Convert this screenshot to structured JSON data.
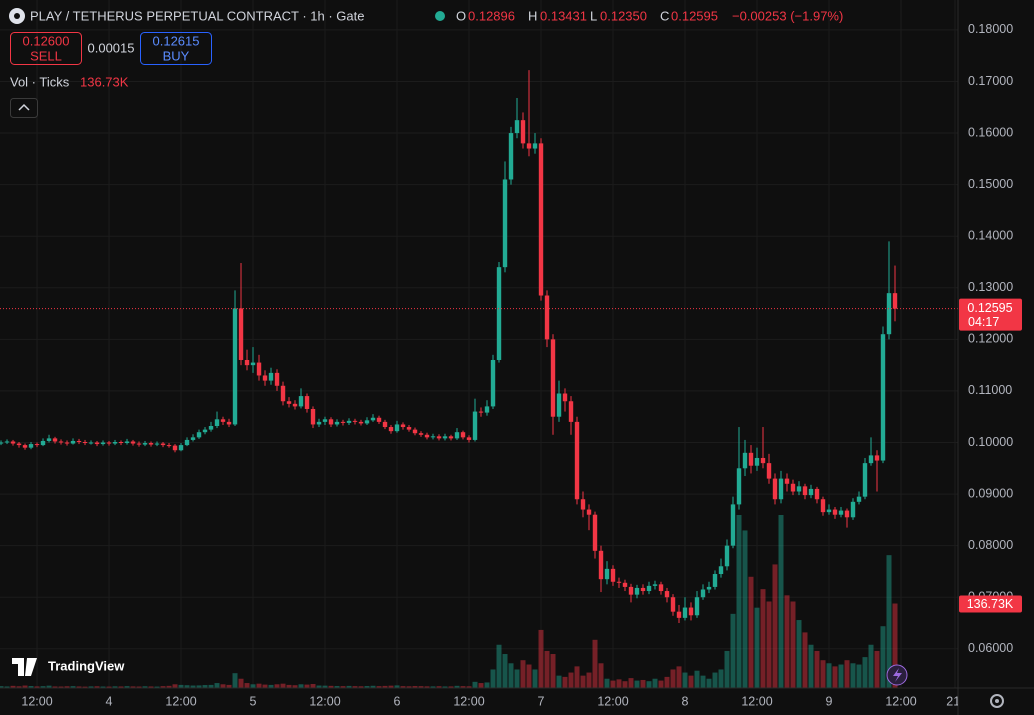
{
  "header": {
    "title": "PLAY / TETHERUS PERPETUAL CONTRACT · 1h · Gate",
    "o_label": "O",
    "h_label": "H",
    "l_label": "L",
    "c_label": "C",
    "last_low_label": "0.12350",
    "change": "−0.00253 (−1.97%)",
    "sell_price": "0.12600",
    "sell_label": "SELL",
    "spread": "0.00015",
    "buy_price": "0.12615",
    "buy_label": "BUY",
    "countdown": "04:17",
    "logo": "TradingView"
  },
  "chart_data": {
    "type": "candlestick",
    "open": [
      0.0998,
      0.1,
      0.1002,
      0.0998,
      0.0995,
      0.099,
      0.0997,
      0.0995,
      0.1003,
      0.1008,
      0.1002,
      0.1,
      0.0998,
      0.1003,
      0.1001,
      0.0999,
      0.1,
      0.0997,
      0.1,
      0.0998,
      0.1001,
      0.0999,
      0.1002,
      0.0998,
      0.0996,
      0.0999,
      0.0996,
      0.0998,
      0.0995,
      0.0994,
      0.0985,
      0.0995,
      0.1005,
      0.101,
      0.102,
      0.1025,
      0.1032,
      0.1045,
      0.104,
      0.1035,
      0.126,
      0.116,
      0.115,
      0.1155,
      0.113,
      0.112,
      0.1135,
      0.111,
      0.108,
      0.1075,
      0.107,
      0.109,
      0.1065,
      0.1035,
      0.104,
      0.1045,
      0.1035,
      0.104,
      0.1038,
      0.1042,
      0.104,
      0.1037,
      0.1043,
      0.1048,
      0.104,
      0.103,
      0.1022,
      0.1035,
      0.103,
      0.1025,
      0.1018,
      0.1015,
      0.101,
      0.1012,
      0.1008,
      0.1012,
      0.1008,
      0.102,
      0.101,
      0.1005,
      0.106,
      0.1058,
      0.107,
      0.116,
      0.134,
      0.151,
      0.16,
      0.1625,
      0.158,
      0.157,
      0.158,
      0.1285,
      0.12,
      0.105,
      0.1095,
      0.108,
      0.104,
      0.089,
      0.087,
      0.086,
      0.079,
      0.0735,
      0.0755,
      0.073,
      0.0728,
      0.072,
      0.0705,
      0.0718,
      0.0712,
      0.0722,
      0.0725,
      0.0712,
      0.07,
      0.0672,
      0.066,
      0.068,
      0.0665,
      0.07,
      0.0715,
      0.072,
      0.0745,
      0.076,
      0.08,
      0.088,
      0.095,
      0.098,
      0.0955,
      0.097,
      0.096,
      0.093,
      0.089,
      0.093,
      0.092,
      0.0905,
      0.0915,
      0.0898,
      0.091,
      0.089,
      0.0865,
      0.087,
      0.086,
      0.0868,
      0.0855,
      0.0885,
      0.0895,
      0.096,
      0.0975,
      0.0965,
      0.121,
      0.12896
    ],
    "high": [
      0.1004,
      0.1006,
      0.1005,
      0.1001,
      0.0998,
      0.1001,
      0.1,
      0.1008,
      0.1015,
      0.1011,
      0.1006,
      0.1004,
      0.1008,
      0.1007,
      0.1005,
      0.1004,
      0.1003,
      0.1004,
      0.1003,
      0.1005,
      0.1004,
      0.1007,
      0.1005,
      0.1002,
      0.1003,
      0.1002,
      0.1002,
      0.1001,
      0.0999,
      0.0997,
      0.0999,
      0.101,
      0.1016,
      0.1025,
      0.103,
      0.104,
      0.106,
      0.105,
      0.1046,
      0.1295,
      0.1348,
      0.118,
      0.1185,
      0.117,
      0.114,
      0.1145,
      0.1142,
      0.1118,
      0.1088,
      0.1082,
      0.1105,
      0.1095,
      0.107,
      0.1046,
      0.105,
      0.1049,
      0.1045,
      0.1044,
      0.1047,
      0.1046,
      0.1044,
      0.1049,
      0.1055,
      0.1052,
      0.1044,
      0.1034,
      0.1042,
      0.1039,
      0.1034,
      0.1029,
      0.1022,
      0.1019,
      0.1017,
      0.1016,
      0.1017,
      0.1015,
      0.1028,
      0.1023,
      0.1014,
      0.1085,
      0.1068,
      0.1082,
      0.117,
      0.135,
      0.1545,
      0.1612,
      0.1668,
      0.164,
      0.1722,
      0.16,
      0.159,
      0.1295,
      0.121,
      0.112,
      0.1105,
      0.109,
      0.105,
      0.0905,
      0.088,
      0.0866,
      0.08,
      0.077,
      0.0762,
      0.0738,
      0.0734,
      0.0726,
      0.0724,
      0.0725,
      0.073,
      0.0732,
      0.073,
      0.0718,
      0.0706,
      0.0685,
      0.07,
      0.069,
      0.0712,
      0.0725,
      0.073,
      0.0752,
      0.0775,
      0.0812,
      0.0895,
      0.103,
      0.1005,
      0.0995,
      0.099,
      0.103,
      0.0978,
      0.094,
      0.0945,
      0.094,
      0.0928,
      0.0925,
      0.092,
      0.0918,
      0.0914,
      0.0895,
      0.088,
      0.0875,
      0.0875,
      0.0872,
      0.0892,
      0.0905,
      0.097,
      0.101,
      0.0985,
      0.1225,
      0.139,
      0.13431
    ],
    "low": [
      0.0995,
      0.0997,
      0.0994,
      0.099,
      0.0986,
      0.0987,
      0.0991,
      0.0993,
      0.1,
      0.0998,
      0.0996,
      0.0994,
      0.0996,
      0.0997,
      0.0995,
      0.0996,
      0.0993,
      0.0994,
      0.0994,
      0.0995,
      0.0995,
      0.0996,
      0.0994,
      0.0992,
      0.0993,
      0.0992,
      0.0993,
      0.0991,
      0.099,
      0.0981,
      0.0983,
      0.0993,
      0.1002,
      0.1007,
      0.1016,
      0.1021,
      0.1028,
      0.1034,
      0.103,
      0.1032,
      0.115,
      0.114,
      0.1135,
      0.112,
      0.111,
      0.1112,
      0.11,
      0.1072,
      0.1068,
      0.1064,
      0.1066,
      0.1058,
      0.1028,
      0.103,
      0.1034,
      0.103,
      0.1031,
      0.1033,
      0.1034,
      0.1035,
      0.1033,
      0.1034,
      0.104,
      0.1036,
      0.1026,
      0.1017,
      0.1019,
      0.1025,
      0.1021,
      0.1014,
      0.1011,
      0.1006,
      0.1006,
      0.1004,
      0.1004,
      0.1004,
      0.1005,
      0.1006,
      0.1,
      0.1002,
      0.105,
      0.1052,
      0.1065,
      0.1155,
      0.133,
      0.15,
      0.159,
      0.157,
      0.1555,
      0.156,
      0.1275,
      0.1185,
      0.1015,
      0.104,
      0.106,
      0.1015,
      0.088,
      0.0855,
      0.083,
      0.0775,
      0.071,
      0.0725,
      0.0722,
      0.0718,
      0.0712,
      0.069,
      0.0698,
      0.0705,
      0.0706,
      0.0715,
      0.0705,
      0.069,
      0.0664,
      0.065,
      0.0655,
      0.0655,
      0.066,
      0.0695,
      0.0708,
      0.0715,
      0.0738,
      0.0752,
      0.0795,
      0.087,
      0.0935,
      0.094,
      0.0945,
      0.095,
      0.092,
      0.088,
      0.0882,
      0.0905,
      0.0898,
      0.0898,
      0.089,
      0.0892,
      0.0882,
      0.0858,
      0.086,
      0.0852,
      0.0855,
      0.0835,
      0.085,
      0.088,
      0.089,
      0.0955,
      0.0905,
      0.096,
      0.12,
      0.1235
    ],
    "close": [
      0.1,
      0.1002,
      0.0998,
      0.0995,
      0.099,
      0.0997,
      0.0995,
      0.1003,
      0.1008,
      0.1002,
      0.1,
      0.0998,
      0.1003,
      0.1001,
      0.0999,
      0.1,
      0.0997,
      0.1,
      0.0998,
      0.1001,
      0.0999,
      0.1002,
      0.0998,
      0.0996,
      0.0999,
      0.0996,
      0.0998,
      0.0995,
      0.0994,
      0.0985,
      0.0995,
      0.1005,
      0.101,
      0.102,
      0.1025,
      0.1032,
      0.1045,
      0.104,
      0.1035,
      0.126,
      0.116,
      0.115,
      0.1155,
      0.113,
      0.112,
      0.1135,
      0.111,
      0.108,
      0.1075,
      0.107,
      0.109,
      0.1065,
      0.1035,
      0.104,
      0.1045,
      0.1035,
      0.104,
      0.1038,
      0.1042,
      0.104,
      0.1037,
      0.1043,
      0.1048,
      0.104,
      0.103,
      0.1022,
      0.1035,
      0.103,
      0.1025,
      0.1018,
      0.1015,
      0.101,
      0.1012,
      0.1008,
      0.1012,
      0.1008,
      0.102,
      0.101,
      0.1005,
      0.106,
      0.1058,
      0.107,
      0.116,
      0.134,
      0.151,
      0.16,
      0.1625,
      0.158,
      0.157,
      0.158,
      0.1285,
      0.12,
      0.105,
      0.1095,
      0.108,
      0.104,
      0.089,
      0.087,
      0.086,
      0.079,
      0.0735,
      0.0755,
      0.073,
      0.0728,
      0.072,
      0.0705,
      0.0718,
      0.0712,
      0.0722,
      0.0725,
      0.0712,
      0.07,
      0.0672,
      0.066,
      0.068,
      0.0665,
      0.07,
      0.0715,
      0.072,
      0.0745,
      0.076,
      0.08,
      0.088,
      0.095,
      0.098,
      0.0955,
      0.097,
      0.096,
      0.093,
      0.089,
      0.093,
      0.092,
      0.0905,
      0.0915,
      0.0898,
      0.091,
      0.089,
      0.0865,
      0.087,
      0.086,
      0.0868,
      0.0855,
      0.0885,
      0.0895,
      0.096,
      0.0975,
      0.0965,
      0.121,
      0.12896,
      0.12595
    ],
    "up_color": "#22ab94",
    "down_color": "#f23645",
    "ylim": [
      0.0524,
      0.1858
    ],
    "yticks": [
      {
        "value": 0.06,
        "label": "0.06000"
      },
      {
        "value": 0.07,
        "label": "0.07000"
      },
      {
        "value": 0.08,
        "label": "0.08000"
      },
      {
        "value": 0.09,
        "label": "0.09000"
      },
      {
        "value": 0.1,
        "label": "0.10000"
      },
      {
        "value": 0.11,
        "label": "0.11000"
      },
      {
        "value": 0.12,
        "label": "0.12000"
      },
      {
        "value": 0.13,
        "label": "0.13000"
      },
      {
        "value": 0.14,
        "label": "0.14000"
      },
      {
        "value": 0.15,
        "label": "0.15000"
      },
      {
        "value": 0.16,
        "label": "0.16000"
      },
      {
        "value": 0.17,
        "label": "0.17000"
      },
      {
        "value": 0.18,
        "label": "0.18000"
      }
    ],
    "xlim": [
      -0.17,
      159.5
    ],
    "xticks": [
      {
        "value": 6,
        "label": "12:00"
      },
      {
        "value": 18,
        "label": "4"
      },
      {
        "value": 30,
        "label": "12:00"
      },
      {
        "value": 42,
        "label": "5"
      },
      {
        "value": 54,
        "label": "12:00"
      },
      {
        "value": 66,
        "label": "6"
      },
      {
        "value": 78,
        "label": "12:00"
      },
      {
        "value": 90,
        "label": "7"
      },
      {
        "value": 102,
        "label": "12:00"
      },
      {
        "value": 114,
        "label": "8"
      },
      {
        "value": 126,
        "label": "12:00"
      },
      {
        "value": 138,
        "label": "9"
      },
      {
        "value": 150,
        "label": "12:00"
      },
      {
        "value": 159,
        "label": "21:"
      }
    ],
    "grid": true,
    "volume": {
      "name": "Vol · Ticks",
      "label": "136.73K",
      "ylim": [
        0,
        280000
      ],
      "values": [
        3000,
        2500,
        3500,
        2800,
        4000,
        3200,
        2600,
        3000,
        3800,
        2500,
        2400,
        2800,
        3000,
        2500,
        2200,
        2600,
        2800,
        2400,
        2300,
        2700,
        2500,
        3000,
        2600,
        2400,
        2800,
        2500,
        2300,
        3000,
        3500,
        6000,
        5000,
        4500,
        4000,
        4200,
        4800,
        5000,
        8000,
        6000,
        5000,
        24000,
        15000,
        8000,
        6000,
        7000,
        5500,
        5000,
        6000,
        7000,
        5000,
        4500,
        6000,
        5500,
        6500,
        4000,
        3800,
        3500,
        3200,
        3000,
        3400,
        3000,
        2800,
        3200,
        3600,
        3000,
        3400,
        3800,
        4200,
        3000,
        2800,
        3200,
        3000,
        2700,
        2600,
        2900,
        2500,
        2600,
        3500,
        3000,
        2800,
        10000,
        8000,
        9000,
        30000,
        70000,
        55000,
        40000,
        30000,
        45000,
        38000,
        30000,
        94000,
        60000,
        55000,
        20000,
        18000,
        25000,
        35000,
        20000,
        25000,
        78000,
        40000,
        15000,
        12000,
        14000,
        11000,
        16000,
        12000,
        13000,
        11000,
        15000,
        12000,
        18000,
        30000,
        35000,
        25000,
        20000,
        28000,
        20000,
        15000,
        25000,
        30000,
        60000,
        120000,
        280000,
        255000,
        180000,
        130000,
        160000,
        140000,
        200000,
        280000,
        150000,
        140000,
        110000,
        90000,
        70000,
        60000,
        45000,
        40000,
        35000,
        38000,
        45000,
        40000,
        38000,
        50000,
        70000,
        60000,
        100000,
        215000,
        136730
      ]
    }
  }
}
